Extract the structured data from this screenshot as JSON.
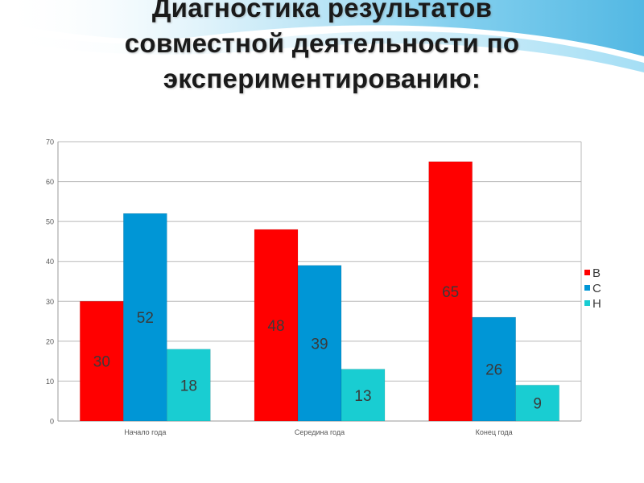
{
  "slide": {
    "title_lines": [
      "Диагностика результатов",
      "совместной деятельности по",
      "экспериментированию:"
    ]
  },
  "colors": {
    "series": [
      "#ff0000",
      "#0096d6",
      "#19cdd2"
    ],
    "grid": "#b8b8b8",
    "frame": "#9a9a9a",
    "label_text": "#3a3a3a",
    "tick_text": "#555555"
  },
  "chart_data": {
    "type": "bar",
    "title": "",
    "xlabel": "",
    "ylabel": "",
    "categories": [
      "Начало года",
      "Середина года",
      "Конец года"
    ],
    "series": [
      {
        "name": "В",
        "values": [
          30,
          48,
          65
        ]
      },
      {
        "name": "С",
        "values": [
          52,
          39,
          26
        ]
      },
      {
        "name": "Н",
        "values": [
          18,
          13,
          9
        ]
      }
    ],
    "ylim": [
      0,
      70
    ],
    "yticks": [
      0,
      10,
      20,
      30,
      40,
      50,
      60,
      70
    ],
    "grid": true,
    "legend": "right",
    "data_labels": true
  }
}
